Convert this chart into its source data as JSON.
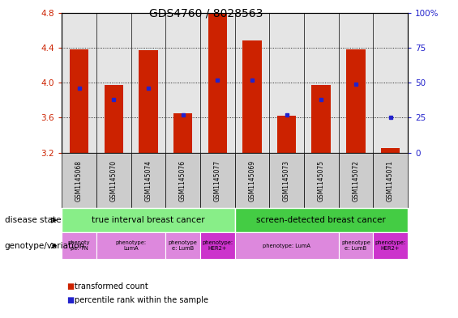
{
  "title": "GDS4760 / 8028563",
  "samples": [
    "GSM1145068",
    "GSM1145070",
    "GSM1145074",
    "GSM1145076",
    "GSM1145077",
    "GSM1145069",
    "GSM1145073",
    "GSM1145075",
    "GSM1145072",
    "GSM1145071"
  ],
  "transformed_count": [
    4.38,
    3.97,
    4.37,
    3.65,
    4.8,
    4.48,
    3.62,
    3.97,
    4.38,
    3.25
  ],
  "percentile_rank": [
    46,
    38,
    46,
    27,
    52,
    52,
    27,
    38,
    49,
    25
  ],
  "ylim": [
    3.2,
    4.8
  ],
  "yticks": [
    3.2,
    3.6,
    4.0,
    4.4,
    4.8
  ],
  "right_yticks": [
    0,
    25,
    50,
    75,
    100
  ],
  "right_ylabels": [
    "0",
    "25",
    "50",
    "75",
    "100%"
  ],
  "bar_color": "#CC2200",
  "dot_color": "#2222CC",
  "bar_width": 0.55,
  "disease_state_groups": [
    {
      "label": "true interval breast cancer",
      "start": 0,
      "end": 5,
      "color": "#88EE88"
    },
    {
      "label": "screen-detected breast cancer",
      "start": 5,
      "end": 10,
      "color": "#44CC44"
    }
  ],
  "genotype_groups": [
    {
      "label": "phenoty\npe: TN",
      "start": 0,
      "end": 1,
      "color": "#DD88DD"
    },
    {
      "label": "phenotype:\nLumA",
      "start": 1,
      "end": 3,
      "color": "#DD88DD"
    },
    {
      "label": "phenotype\ne: LumB",
      "start": 3,
      "end": 4,
      "color": "#DD88DD"
    },
    {
      "label": "phenotype:\nHER2+",
      "start": 4,
      "end": 5,
      "color": "#CC33CC"
    },
    {
      "label": "phenotype: LumA",
      "start": 5,
      "end": 8,
      "color": "#DD88DD"
    },
    {
      "label": "phenotype\ne: LumB",
      "start": 8,
      "end": 9,
      "color": "#DD88DD"
    },
    {
      "label": "phenotype:\nHER2+",
      "start": 9,
      "end": 10,
      "color": "#CC33CC"
    }
  ],
  "legend_items": [
    {
      "label": "transformed count",
      "color": "#CC2200"
    },
    {
      "label": "percentile rank within the sample",
      "color": "#2222CC"
    }
  ],
  "tick_color_left": "#CC2200",
  "tick_color_right": "#2222CC",
  "col_bg": "#CCCCCC"
}
